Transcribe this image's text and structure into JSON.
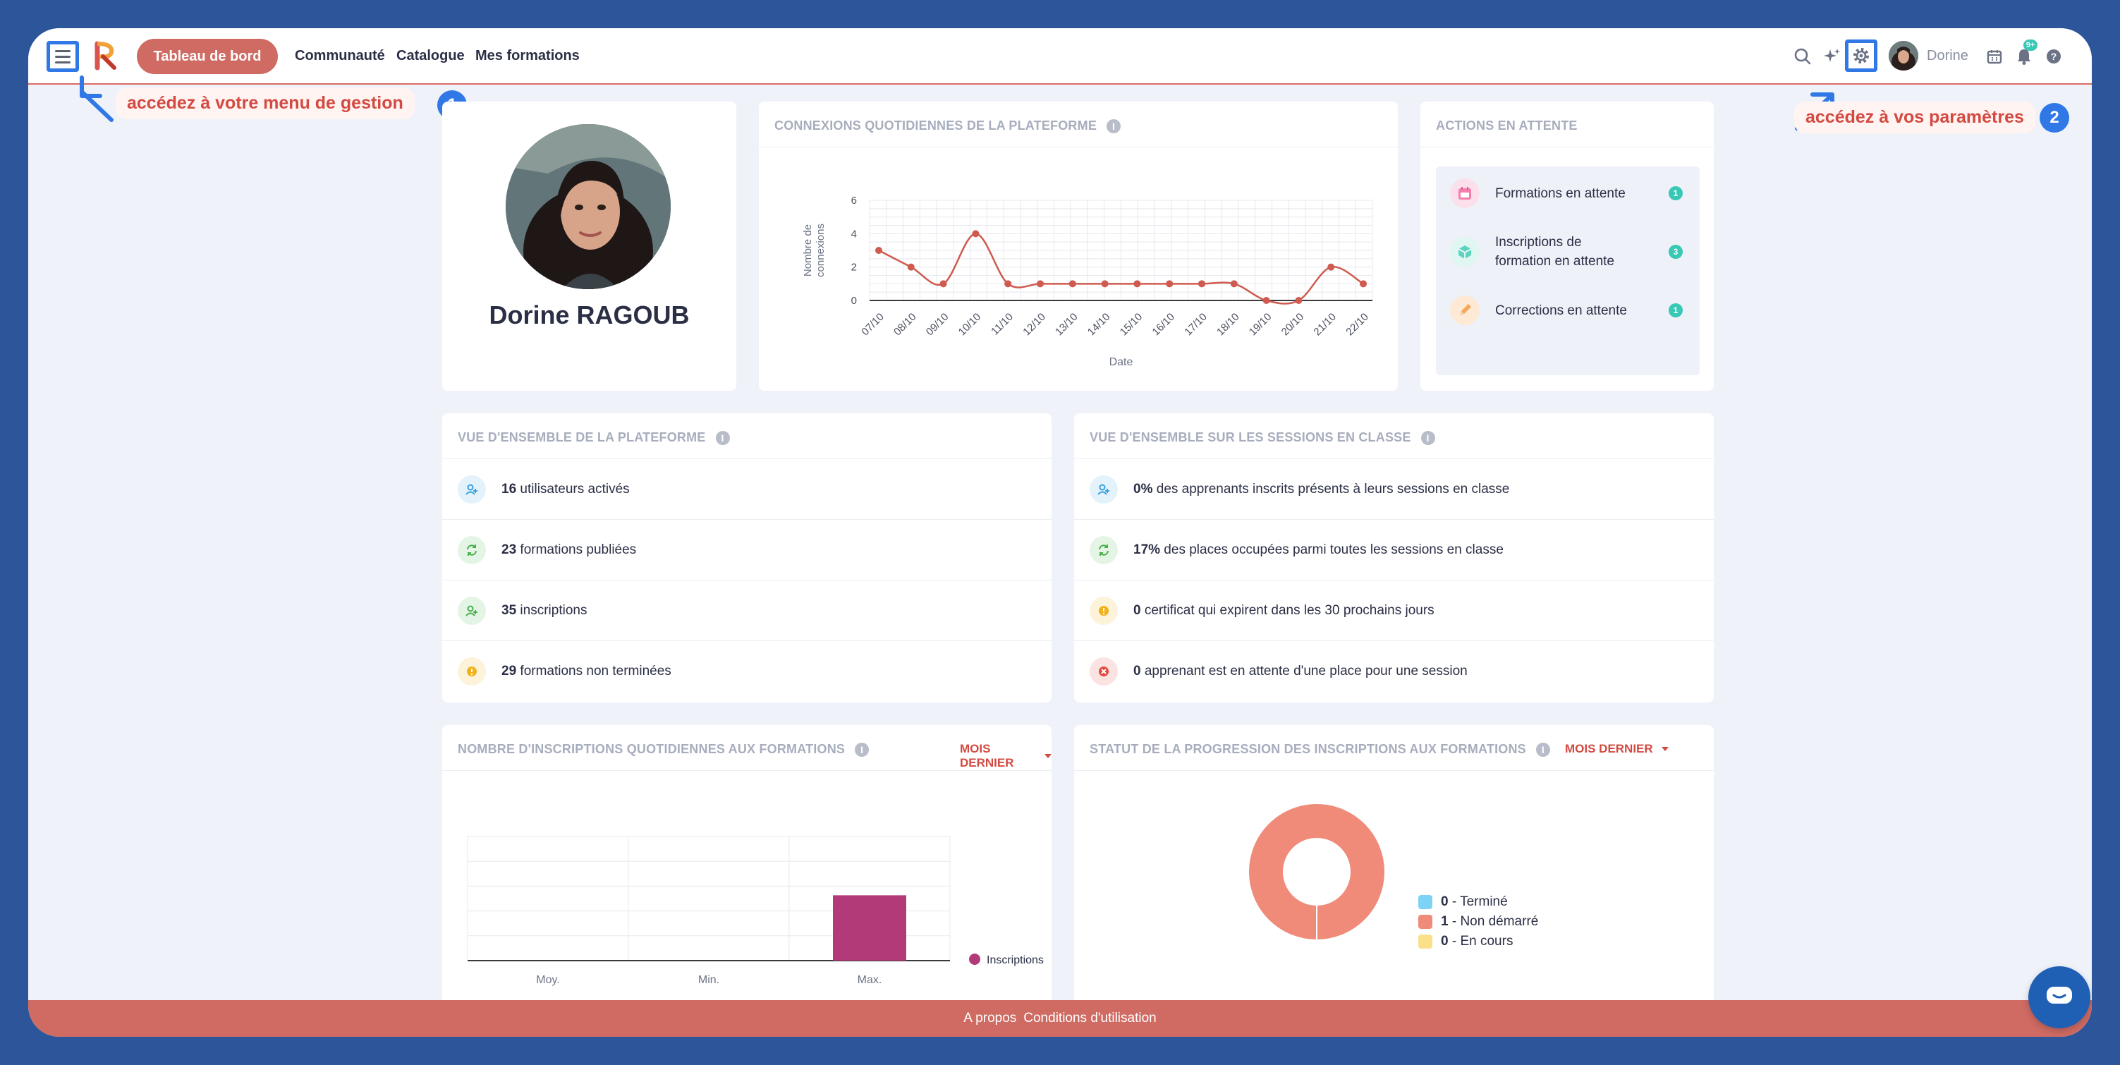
{
  "topbar": {
    "menu_icon": "hamburger-icon",
    "active_tab": "Tableau de bord",
    "nav": [
      "Communauté",
      "Catalogue",
      "Mes formations"
    ],
    "user_name": "Dorine",
    "notification_count": "9+"
  },
  "callouts": [
    {
      "text": "accédez à votre menu de gestion",
      "step": "1"
    },
    {
      "text": "accédez à vos paramètres",
      "step": "2"
    }
  ],
  "profile": {
    "name": "Dorine RAGOUB"
  },
  "connections_card": {
    "title": "CONNEXIONS QUOTIDIENNES DE LA PLATEFORME"
  },
  "actions_card": {
    "title": "ACTIONS EN ATTENTE",
    "items": [
      {
        "label": "Formations en attente",
        "count": "1",
        "color": "#f37fb0",
        "icon": "calendar-icon"
      },
      {
        "label": "Inscriptions de formation en attente",
        "line1": "Inscriptions de",
        "line2": "formation en attente",
        "count": "3",
        "color": "#5fd3c0",
        "icon": "box-icon"
      },
      {
        "label": "Corrections en attente",
        "count": "1",
        "color": "#f6a858",
        "icon": "pencil-icon"
      }
    ]
  },
  "platform_overview": {
    "title": "VUE D'ENSEMBLE DE LA PLATEFORME",
    "rows": [
      {
        "value": "16",
        "text": " utilisateurs activés",
        "icon": "user-plus-icon",
        "color": "#3aa1e0",
        "bg": "#e3f2fb"
      },
      {
        "value": "23",
        "text": " formations publiées",
        "icon": "refresh-icon",
        "color": "#47b04b",
        "bg": "#e5f5e5"
      },
      {
        "value": "35",
        "text": " inscriptions",
        "icon": "user-plus-icon",
        "color": "#47b04b",
        "bg": "#e5f5e5"
      },
      {
        "value": "29",
        "text": " formations non terminées",
        "icon": "warning-icon",
        "color": "#f2b21c",
        "bg": "#fdf3da"
      }
    ]
  },
  "sessions_overview": {
    "title": "VUE D'ENSEMBLE SUR LES SESSIONS EN CLASSE",
    "rows": [
      {
        "value": "0%",
        "text": " des apprenants inscrits présents à leurs sessions en classe",
        "icon": "user-plus-icon",
        "color": "#3aa1e0",
        "bg": "#e3f2fb"
      },
      {
        "value": "17%",
        "text": " des places occupées parmi toutes les sessions en classe",
        "icon": "refresh-icon",
        "color": "#47b04b",
        "bg": "#e5f5e5"
      },
      {
        "value": "0",
        "text": " certificat qui expirent dans les 30 prochains jours",
        "icon": "warning-icon",
        "color": "#f2b21c",
        "bg": "#fdf3da"
      },
      {
        "value": "0",
        "text": " apprenant est en attente d'une place pour une session",
        "icon": "close-circle-icon",
        "color": "#e04a3f",
        "bg": "#fbe3e1"
      }
    ]
  },
  "daily_signups_card": {
    "title": "NOMBRE D'INSCRIPTIONS QUOTIDIENNES AUX FORMATIONS",
    "period": "MOIS DERNIER"
  },
  "progress_card": {
    "title": "STATUT DE LA PROGRESSION DES INSCRIPTIONS AUX FORMATIONS",
    "period": "MOIS DERNIER"
  },
  "footer": {
    "about": "A propos",
    "terms": "Conditions d'utilisation"
  },
  "colors": {
    "accent": "#cf6b63",
    "highlight": "#2f78e6",
    "bar": "#b23a78"
  },
  "chart_data": [
    {
      "type": "line",
      "x": [
        "07/10",
        "08/10",
        "09/10",
        "10/10",
        "11/10",
        "12/10",
        "13/10",
        "14/10",
        "15/10",
        "16/10",
        "17/10",
        "18/10",
        "19/10",
        "20/10",
        "21/10",
        "22/10"
      ],
      "values": [
        3,
        2,
        1,
        4,
        1,
        1,
        1,
        1,
        1,
        1,
        1,
        1,
        0,
        0,
        2,
        1
      ],
      "xlabel": "Date",
      "ylabel": "Nombre de connexions",
      "ylim": [
        0,
        6
      ],
      "yticks": [
        "0",
        "2",
        "4",
        "6"
      ],
      "grid": true,
      "color": "#cf5a4f"
    },
    {
      "type": "bar",
      "categories": [
        "Moy.",
        "Min.",
        "Max."
      ],
      "series": [
        {
          "name": "Inscriptions",
          "values": [
            0,
            0,
            1
          ],
          "color": "#b23a78"
        }
      ],
      "ylim": [
        0,
        1.9
      ],
      "grid": true,
      "legend": "right"
    },
    {
      "type": "pie",
      "donut": true,
      "labels": [
        "Terminé",
        "Non démarré",
        "En cours"
      ],
      "values": [
        0,
        1,
        0
      ],
      "colors": [
        "#7dd3f5",
        "#ef8b78",
        "#fbe08a"
      ],
      "legend": "right"
    }
  ]
}
